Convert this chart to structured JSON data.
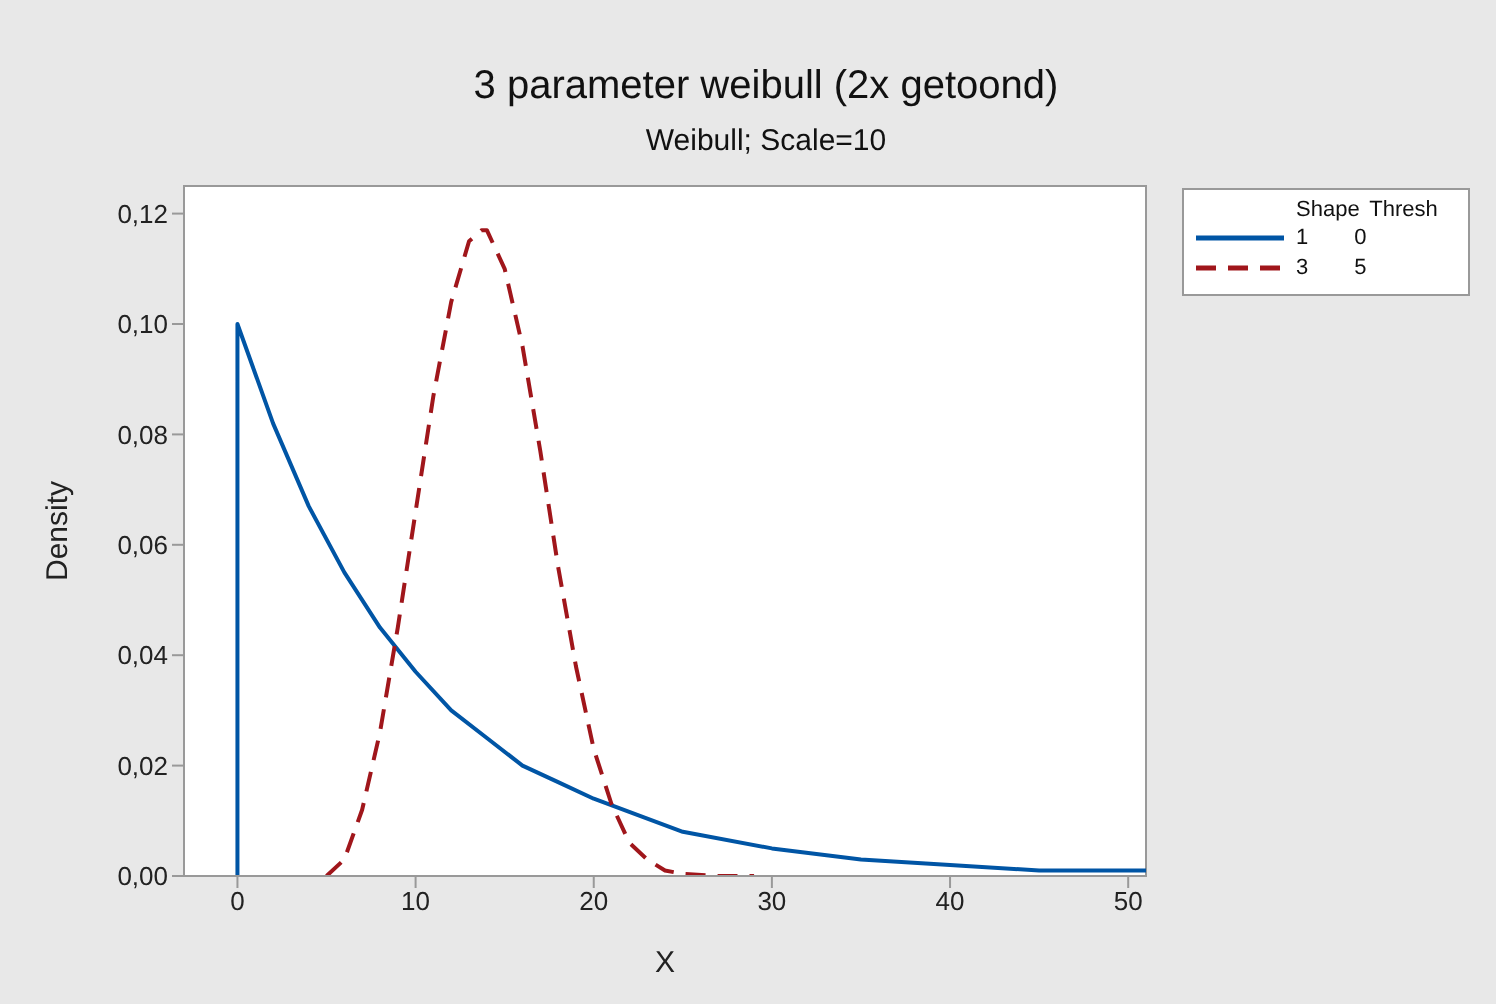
{
  "chart_data": {
    "type": "line",
    "title": "3 parameter weibull (2x getoond)",
    "subtitle": "Weibull; Scale=10",
    "xlabel": "X",
    "ylabel": "Density",
    "legend_title": "Shape Thresh",
    "legend": "top right",
    "marker": "none",
    "xlim": [
      -3,
      51
    ],
    "xticks": [
      0,
      10,
      20,
      30,
      40,
      50
    ],
    "ylim": [
      0,
      0.125
    ],
    "yticks": [
      {
        "value": 0,
        "label": "0,00"
      },
      {
        "value": 0.02,
        "label": "0,02"
      },
      {
        "value": 0.04,
        "label": "0,04"
      },
      {
        "value": 0.06,
        "label": "0,06"
      },
      {
        "value": 0.08,
        "label": "0,08"
      },
      {
        "value": 0.1,
        "label": "0,10"
      },
      {
        "value": 0.12,
        "label": "0,12"
      }
    ],
    "series": [
      {
        "name": "1 0",
        "color": "#0055a5",
        "line_style": "solid",
        "x": [
          0,
          0,
          2,
          4,
          6,
          8,
          10,
          12,
          14,
          16,
          18,
          20,
          25,
          30,
          35,
          40,
          45,
          50,
          51
        ],
        "values": [
          0,
          0.1,
          0.082,
          0.067,
          0.055,
          0.045,
          0.037,
          0.03,
          0.025,
          0.02,
          0.017,
          0.014,
          0.008,
          0.005,
          0.003,
          0.002,
          0.001,
          0.001,
          0.001
        ]
      },
      {
        "name": "3 5",
        "color": "#a0161b",
        "line_style": "dashed",
        "x": [
          5,
          6,
          7,
          8,
          9,
          10,
          11,
          12,
          13,
          13.7,
          14,
          15,
          16,
          17,
          18,
          19,
          20,
          21,
          22,
          23,
          24,
          25,
          27,
          29
        ],
        "values": [
          0,
          0.003,
          0.012,
          0.026,
          0.045,
          0.066,
          0.087,
          0.104,
          0.115,
          0.117,
          0.117,
          0.11,
          0.096,
          0.077,
          0.056,
          0.038,
          0.023,
          0.013,
          0.006,
          0.003,
          0.001,
          0.0004,
          0,
          0
        ]
      }
    ]
  }
}
